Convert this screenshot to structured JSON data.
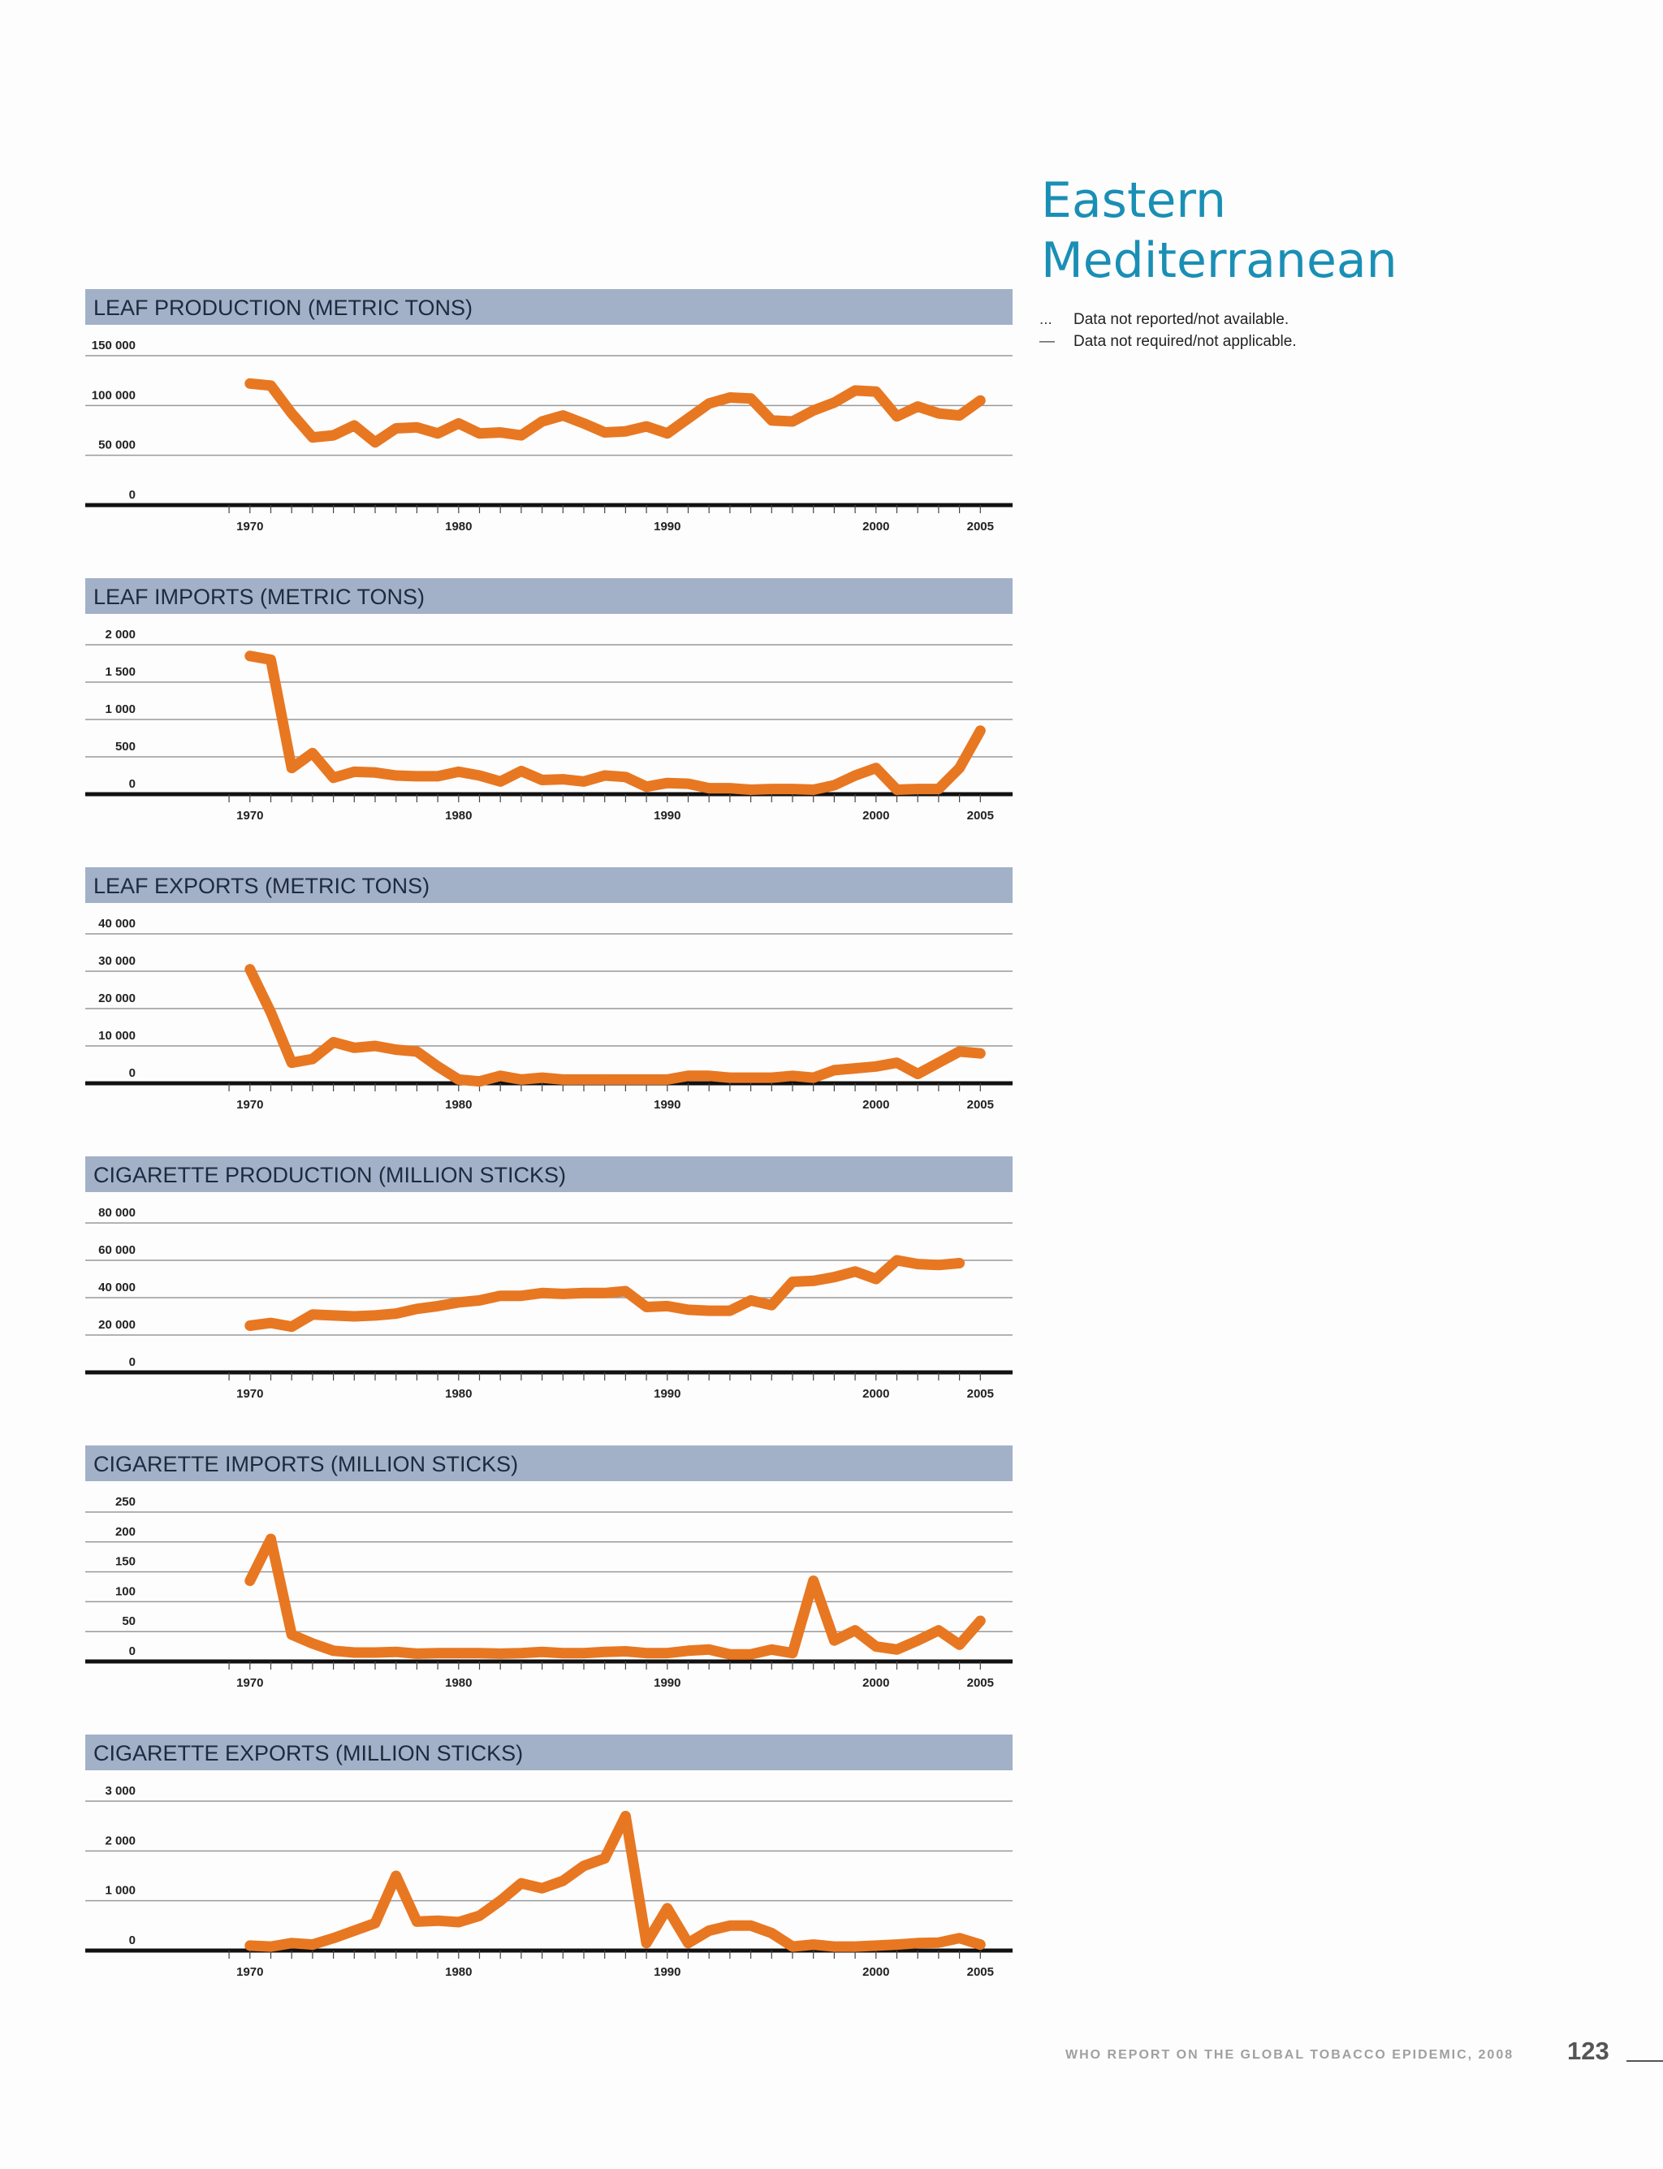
{
  "page": {
    "region_title_lines": [
      "Eastern",
      "Mediterranean"
    ],
    "legend": [
      {
        "symbol": "...",
        "text": "Data not reported/not available."
      },
      {
        "symbol": "—",
        "text": "Data not required/not applicable."
      }
    ],
    "footer": "WHO REPORT ON THE GLOBAL TOBACCO EPIDEMIC, 2008",
    "page_number": "123",
    "line_color": "#e87722",
    "header_color": "#a2b1c7",
    "title_color": "#1a8fb5"
  },
  "chart_data": [
    {
      "type": "line",
      "title": "LEAF PRODUCTION (METRIC TONS)",
      "x_tick_labels": [
        "1970",
        "1980",
        "1990",
        "2000",
        "2005"
      ],
      "xlim": [
        1966,
        2006
      ],
      "ylim": [
        0,
        150000
      ],
      "y_ticks": [
        0,
        50000,
        100000,
        150000
      ],
      "y_tick_labels": [
        "0",
        "50 000",
        "100 000",
        "150 000"
      ],
      "x": [
        1970,
        1971,
        1972,
        1973,
        1974,
        1975,
        1976,
        1977,
        1978,
        1979,
        1980,
        1981,
        1982,
        1983,
        1984,
        1985,
        1986,
        1987,
        1988,
        1989,
        1990,
        1991,
        1992,
        1993,
        1994,
        1995,
        1996,
        1997,
        1998,
        1999,
        2000,
        2001,
        2002,
        2003,
        2004,
        2005
      ],
      "y": [
        122000,
        120000,
        92000,
        68000,
        70000,
        80000,
        63000,
        77000,
        78000,
        72000,
        82000,
        72000,
        73000,
        70000,
        84000,
        90000,
        82000,
        73000,
        74000,
        79000,
        72000,
        87000,
        102000,
        108000,
        107000,
        85000,
        84000,
        95000,
        103000,
        115000,
        114000,
        89000,
        99000,
        92000,
        90000,
        105000
      ]
    },
    {
      "type": "line",
      "title": "LEAF IMPORTS (METRIC TONS)",
      "x_tick_labels": [
        "1970",
        "1980",
        "1990",
        "2000",
        "2005"
      ],
      "xlim": [
        1966,
        2006
      ],
      "ylim": [
        0,
        2000
      ],
      "y_ticks": [
        0,
        500,
        1000,
        1500,
        2000
      ],
      "y_tick_labels": [
        "0",
        "500",
        "1 000",
        "1 500",
        "2 000"
      ],
      "x": [
        1970,
        1971,
        1972,
        1973,
        1974,
        1975,
        1976,
        1977,
        1978,
        1979,
        1980,
        1981,
        1982,
        1983,
        1984,
        1985,
        1986,
        1987,
        1988,
        1989,
        1990,
        1991,
        1992,
        1993,
        1994,
        1995,
        1996,
        1997,
        1998,
        1999,
        2000,
        2001,
        2002,
        2003,
        2004,
        2005
      ],
      "y": [
        1850,
        1800,
        350,
        550,
        220,
        300,
        290,
        250,
        240,
        240,
        300,
        250,
        170,
        310,
        190,
        200,
        170,
        250,
        230,
        100,
        150,
        140,
        80,
        80,
        60,
        70,
        70,
        60,
        120,
        250,
        350,
        60,
        70,
        70,
        350,
        850
      ]
    },
    {
      "type": "line",
      "title": "LEAF EXPORTS (METRIC TONS)",
      "x_tick_labels": [
        "1970",
        "1980",
        "1990",
        "2000",
        "2005"
      ],
      "xlim": [
        1966,
        2006
      ],
      "ylim": [
        0,
        40000
      ],
      "y_ticks": [
        0,
        10000,
        20000,
        30000,
        40000
      ],
      "y_tick_labels": [
        "0",
        "10 000",
        "20 000",
        "30 000",
        "40 000"
      ],
      "x": [
        1970,
        1971,
        1972,
        1973,
        1974,
        1975,
        1976,
        1977,
        1978,
        1979,
        1980,
        1981,
        1982,
        1983,
        1984,
        1985,
        1986,
        1987,
        1988,
        1989,
        1990,
        1991,
        1992,
        1993,
        1994,
        1995,
        1996,
        1997,
        1998,
        1999,
        2000,
        2001,
        2002,
        2003,
        2004,
        2005
      ],
      "y": [
        30500,
        19000,
        5500,
        6500,
        11000,
        9500,
        10000,
        9000,
        8500,
        4500,
        1000,
        500,
        2000,
        1000,
        1500,
        1000,
        1000,
        1000,
        1000,
        1000,
        1000,
        2000,
        2000,
        1500,
        1500,
        1500,
        2000,
        1500,
        3500,
        4000,
        4500,
        5500,
        2500,
        5500,
        8500,
        8000
      ]
    },
    {
      "type": "line",
      "title": "CIGARETTE PRODUCTION (MILLION STICKS)",
      "x_tick_labels": [
        "1970",
        "1980",
        "1990",
        "2000",
        "2005"
      ],
      "xlim": [
        1966,
        2006
      ],
      "ylim": [
        0,
        80000
      ],
      "y_ticks": [
        0,
        20000,
        40000,
        60000,
        80000
      ],
      "y_tick_labels": [
        "0",
        "20 000",
        "40 000",
        "60 000",
        "80 000"
      ],
      "x": [
        1970,
        1971,
        1972,
        1973,
        1974,
        1975,
        1976,
        1977,
        1978,
        1979,
        1980,
        1981,
        1982,
        1983,
        1984,
        1985,
        1986,
        1987,
        1988,
        1989,
        1990,
        1991,
        1992,
        1993,
        1994,
        1995,
        1996,
        1997,
        1998,
        1999,
        2000,
        2001,
        2002,
        2003,
        2004
      ],
      "y": [
        25000,
        26500,
        24500,
        31000,
        30500,
        30000,
        30500,
        31500,
        34000,
        35500,
        37500,
        38500,
        41000,
        41000,
        42500,
        42000,
        42500,
        42500,
        43500,
        35000,
        35500,
        33500,
        33000,
        33000,
        38500,
        36000,
        48500,
        49000,
        51000,
        54000,
        50000,
        60000,
        58000,
        57500,
        58500
      ]
    },
    {
      "type": "line",
      "title": "CIGARETTE IMPORTS (MILLION STICKS)",
      "x_tick_labels": [
        "1970",
        "1980",
        "1990",
        "2000",
        "2005"
      ],
      "xlim": [
        1966,
        2006
      ],
      "ylim": [
        0,
        250
      ],
      "y_ticks": [
        0,
        50,
        100,
        150,
        200,
        250
      ],
      "y_tick_labels": [
        "0",
        "50",
        "100",
        "150",
        "200",
        "250"
      ],
      "x": [
        1970,
        1971,
        1972,
        1973,
        1974,
        1975,
        1976,
        1977,
        1978,
        1979,
        1980,
        1981,
        1982,
        1983,
        1984,
        1985,
        1986,
        1987,
        1988,
        1989,
        1990,
        1991,
        1992,
        1993,
        1994,
        1995,
        1996,
        1997,
        1998,
        1999,
        2000,
        2001,
        2002,
        2003,
        2004,
        2005
      ],
      "y": [
        135,
        205,
        45,
        30,
        18,
        15,
        15,
        16,
        13,
        14,
        14,
        14,
        13,
        14,
        16,
        14,
        14,
        16,
        17,
        14,
        14,
        18,
        20,
        12,
        12,
        20,
        14,
        135,
        35,
        52,
        25,
        20,
        35,
        52,
        28,
        68
      ]
    },
    {
      "type": "line",
      "title": "CIGARETTE EXPORTS (MILLION STICKS)",
      "x_tick_labels": [
        "1970",
        "1980",
        "1990",
        "2000",
        "2005"
      ],
      "xlim": [
        1966,
        2006
      ],
      "ylim": [
        0,
        3000
      ],
      "y_ticks": [
        0,
        1000,
        2000,
        3000
      ],
      "y_tick_labels": [
        "0",
        "1 000",
        "2 000",
        "3 000"
      ],
      "x": [
        1970,
        1971,
        1972,
        1973,
        1974,
        1975,
        1976,
        1977,
        1978,
        1979,
        1980,
        1981,
        1982,
        1983,
        1984,
        1985,
        1986,
        1987,
        1988,
        1989,
        1990,
        1991,
        1992,
        1993,
        1994,
        1995,
        1996,
        1997,
        1998,
        1999,
        2000,
        2001,
        2002,
        2003,
        2004,
        2005
      ],
      "y": [
        100,
        80,
        150,
        120,
        250,
        400,
        550,
        1500,
        580,
        600,
        570,
        700,
        1000,
        1350,
        1250,
        1400,
        1700,
        1850,
        2700,
        150,
        850,
        150,
        400,
        500,
        500,
        350,
        80,
        120,
        80,
        80,
        100,
        120,
        150,
        160,
        250,
        120
      ]
    }
  ]
}
